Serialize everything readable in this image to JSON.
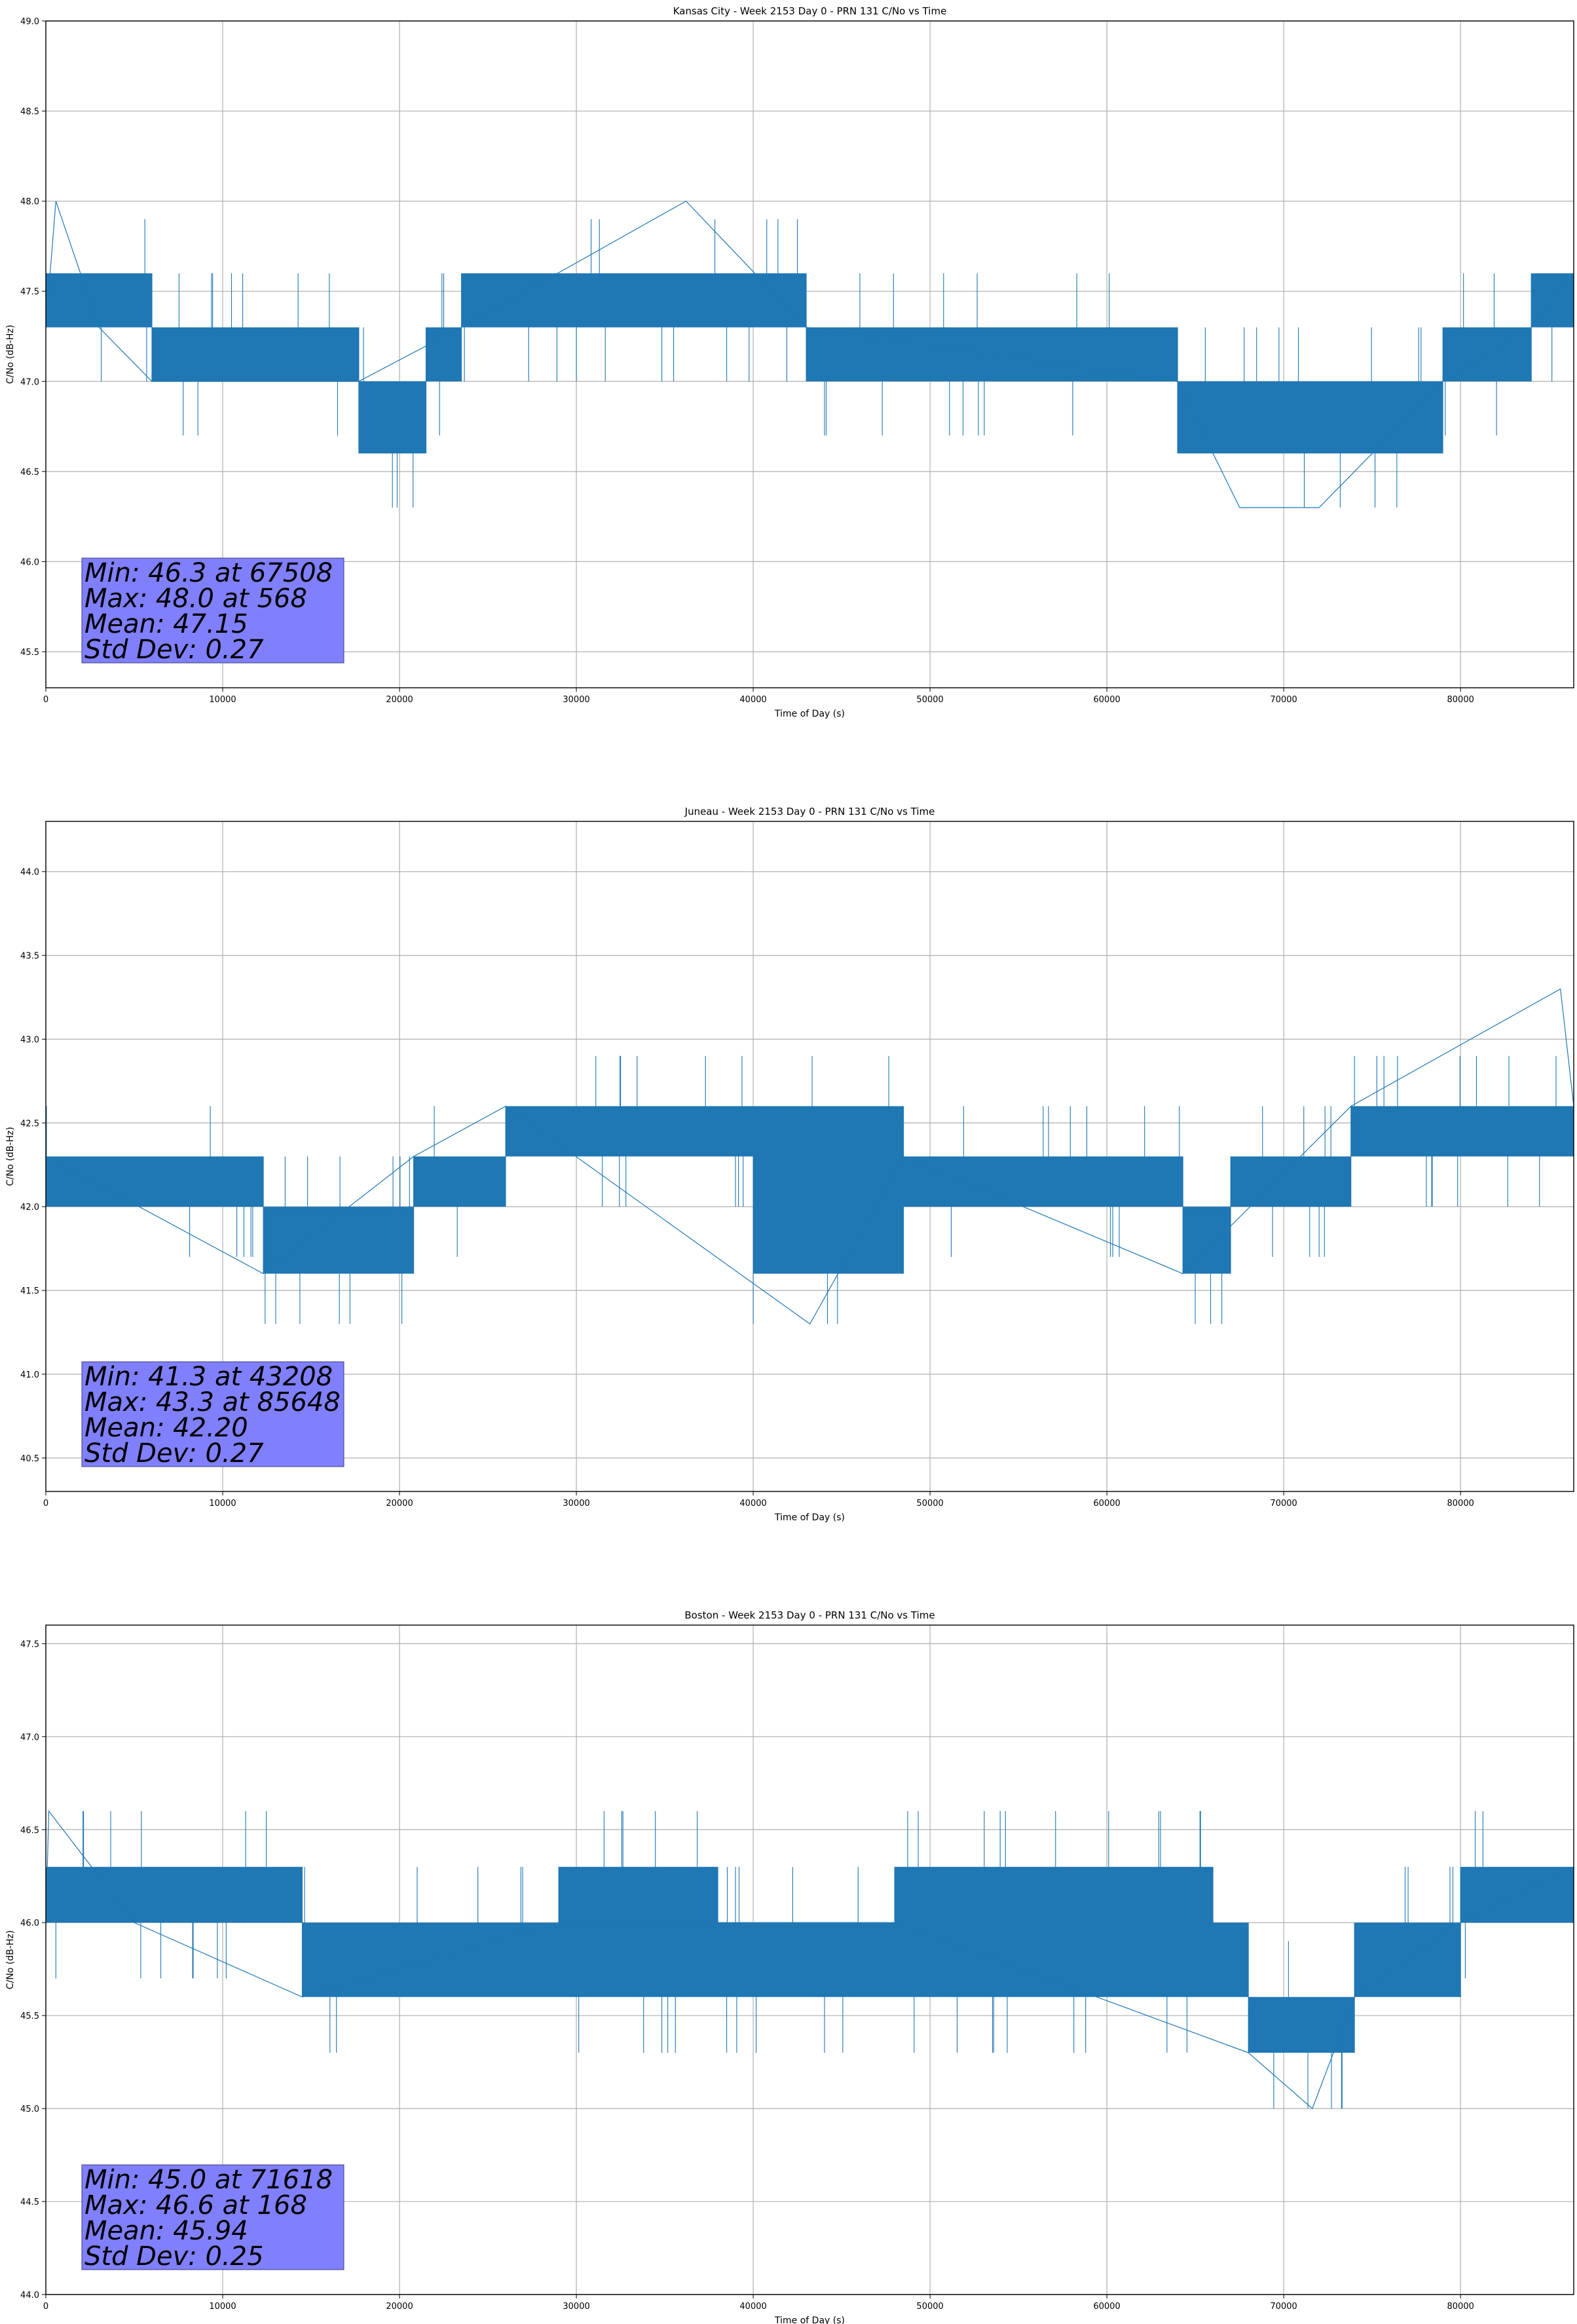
{
  "chart_data": [
    {
      "type": "line",
      "title": "Kansas City - Week 2153 Day 0 - PRN 131 C/No vs Time",
      "xlabel": "Time of Day (s)",
      "ylabel": "C/No (dB-Hz)",
      "xlim": [
        0,
        86400
      ],
      "ylim": [
        45.3,
        49.0
      ],
      "xticks": [
        0,
        10000,
        20000,
        30000,
        40000,
        50000,
        60000,
        70000,
        80000
      ],
      "yticks": [
        45.5,
        46.0,
        46.5,
        47.0,
        47.5,
        48.0,
        48.5,
        49.0
      ],
      "grid": true,
      "color": "#1f77b4",
      "stats": [
        "Min: 46.3 at 67508",
        "Max: 48.0 at 568",
        "Mean: 47.15",
        "Std Dev: 0.27"
      ],
      "segments": [
        {
          "x": [
            0,
            3000
          ],
          "lo": 47.3,
          "hi": 47.6
        },
        {
          "x": [
            3000,
            6000
          ],
          "lo": 47.3,
          "hi": 47.6
        },
        {
          "x": [
            6000,
            16500
          ],
          "lo": 47.0,
          "hi": 47.3
        },
        {
          "x": [
            16500,
            17700
          ],
          "lo": 47.0,
          "hi": 47.3
        },
        {
          "x": [
            17700,
            21500
          ],
          "lo": 46.6,
          "hi": 47.0
        },
        {
          "x": [
            21500,
            23500
          ],
          "lo": 47.0,
          "hi": 47.3
        },
        {
          "x": [
            23500,
            43000
          ],
          "lo": 47.3,
          "hi": 47.6
        },
        {
          "x": [
            43000,
            64000
          ],
          "lo": 47.0,
          "hi": 47.3
        },
        {
          "x": [
            64000,
            79000
          ],
          "lo": 46.6,
          "hi": 47.0
        },
        {
          "x": [
            79000,
            84000
          ],
          "lo": 47.0,
          "hi": 47.3
        },
        {
          "x": [
            84000,
            86400
          ],
          "lo": 47.3,
          "hi": 47.6
        }
      ],
      "points": [
        [
          0,
          47.3
        ],
        [
          568,
          48.0
        ],
        [
          3000,
          47.3
        ],
        [
          6000,
          47.0
        ],
        [
          17700,
          47.0
        ],
        [
          23500,
          47.3
        ],
        [
          36200,
          48.0
        ],
        [
          43000,
          47.3
        ],
        [
          64000,
          47.0
        ],
        [
          67508,
          46.3
        ],
        [
          72000,
          46.3
        ],
        [
          79000,
          47.0
        ],
        [
          84000,
          47.3
        ],
        [
          86400,
          47.6
        ]
      ]
    },
    {
      "type": "line",
      "title": "Juneau - Week 2153 Day 0 - PRN 131 C/No vs Time",
      "xlabel": "Time of Day (s)",
      "ylabel": "C/No (dB-Hz)",
      "xlim": [
        0,
        86400
      ],
      "ylim": [
        40.3,
        44.3
      ],
      "xticks": [
        0,
        10000,
        20000,
        30000,
        40000,
        50000,
        60000,
        70000,
        80000
      ],
      "yticks": [
        40.5,
        41.0,
        41.5,
        42.0,
        42.5,
        43.0,
        43.5,
        44.0
      ],
      "grid": true,
      "color": "#1f77b4",
      "stats": [
        "Min: 41.3 at 43208",
        "Max: 43.3 at 85648",
        "Mean: 42.20",
        "Std Dev: 0.27"
      ],
      "segments": [
        {
          "x": [
            0,
            12300
          ],
          "lo": 42.0,
          "hi": 42.3
        },
        {
          "x": [
            12300,
            20800
          ],
          "lo": 41.6,
          "hi": 42.0
        },
        {
          "x": [
            20800,
            26000
          ],
          "lo": 42.0,
          "hi": 42.3
        },
        {
          "x": [
            26000,
            40000
          ],
          "lo": 42.3,
          "hi": 42.6
        },
        {
          "x": [
            40000,
            48500
          ],
          "lo": 41.6,
          "hi": 42.6
        },
        {
          "x": [
            48500,
            64300
          ],
          "lo": 42.0,
          "hi": 42.3
        },
        {
          "x": [
            64300,
            67000
          ],
          "lo": 41.6,
          "hi": 42.0
        },
        {
          "x": [
            67000,
            70500
          ],
          "lo": 42.0,
          "hi": 42.3
        },
        {
          "x": [
            70500,
            73800
          ],
          "lo": 42.0,
          "hi": 42.3
        },
        {
          "x": [
            73800,
            86400
          ],
          "lo": 42.3,
          "hi": 42.6
        }
      ],
      "points": [
        [
          0,
          42.3
        ],
        [
          12300,
          41.6
        ],
        [
          20800,
          42.3
        ],
        [
          26000,
          42.6
        ],
        [
          43208,
          41.3
        ],
        [
          48500,
          42.3
        ],
        [
          64300,
          41.6
        ],
        [
          73800,
          42.6
        ],
        [
          85648,
          43.3
        ],
        [
          86400,
          42.6
        ]
      ]
    },
    {
      "type": "line",
      "title": "Boston - Week 2153 Day 0 - PRN 131 C/No vs Time",
      "xlabel": "Time of Day (s)",
      "ylabel": "C/No (dB-Hz)",
      "xlim": [
        0,
        86400
      ],
      "ylim": [
        44.0,
        47.6
      ],
      "xticks": [
        0,
        10000,
        20000,
        30000,
        40000,
        50000,
        60000,
        70000,
        80000
      ],
      "yticks": [
        44.0,
        44.5,
        45.0,
        45.5,
        46.0,
        46.5,
        47.0,
        47.5
      ],
      "grid": true,
      "color": "#1f77b4",
      "stats": [
        "Min: 45.0 at 71618",
        "Max: 46.6 at 168",
        "Mean: 45.94",
        "Std Dev: 0.25"
      ],
      "segments": [
        {
          "x": [
            0,
            14500
          ],
          "lo": 46.0,
          "hi": 46.3
        },
        {
          "x": [
            14500,
            29000
          ],
          "lo": 45.6,
          "hi": 46.0
        },
        {
          "x": [
            29000,
            38000
          ],
          "lo": 45.6,
          "hi": 46.3
        },
        {
          "x": [
            38000,
            48000
          ],
          "lo": 45.6,
          "hi": 46.0
        },
        {
          "x": [
            48000,
            66000
          ],
          "lo": 45.6,
          "hi": 46.3
        },
        {
          "x": [
            66000,
            68000
          ],
          "lo": 45.6,
          "hi": 46.0
        },
        {
          "x": [
            68000,
            74000
          ],
          "lo": 45.3,
          "hi": 45.6
        },
        {
          "x": [
            74000,
            80000
          ],
          "lo": 45.6,
          "hi": 46.0
        },
        {
          "x": [
            80000,
            86400
          ],
          "lo": 46.0,
          "hi": 46.3
        }
      ],
      "points": [
        [
          0,
          46.0
        ],
        [
          168,
          46.6
        ],
        [
          5000,
          46.0
        ],
        [
          14500,
          45.6
        ],
        [
          29000,
          46.0
        ],
        [
          48000,
          46.0
        ],
        [
          68000,
          45.3
        ],
        [
          71618,
          45.0
        ],
        [
          74000,
          45.6
        ],
        [
          80000,
          46.0
        ],
        [
          86400,
          46.3
        ]
      ]
    }
  ]
}
